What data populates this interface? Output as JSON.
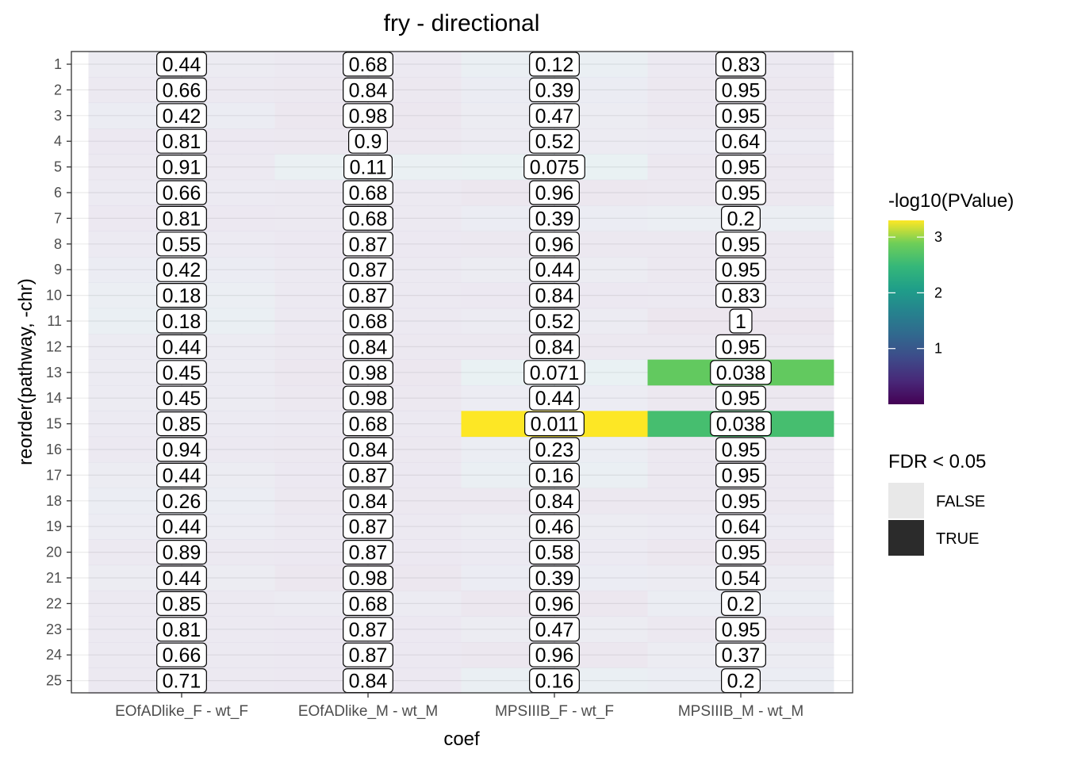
{
  "chart_data": {
    "type": "heatmap",
    "title": "fry - directional",
    "xlabel": "coef",
    "ylabel": "reorder(pathway, -chr)",
    "x_categories": [
      "EOfADlike_F - wt_F",
      "EOfADlike_M - wt_M",
      "MPSIIIB_F - wt_F",
      "MPSIIIB_M - wt_M"
    ],
    "y_categories": [
      "1",
      "2",
      "3",
      "4",
      "5",
      "6",
      "7",
      "8",
      "9",
      "10",
      "11",
      "12",
      "13",
      "14",
      "15",
      "16",
      "17",
      "18",
      "19",
      "20",
      "21",
      "22",
      "23",
      "24",
      "25"
    ],
    "fdr_labels": [
      [
        "0.44",
        "0.66",
        "0.42",
        "0.81",
        "0.91",
        "0.66",
        "0.81",
        "0.55",
        "0.42",
        "0.18",
        "0.18",
        "0.44",
        "0.45",
        "0.45",
        "0.85",
        "0.94",
        "0.44",
        "0.26",
        "0.44",
        "0.89",
        "0.44",
        "0.85",
        "0.81",
        "0.66",
        "0.71"
      ],
      [
        "0.68",
        "0.84",
        "0.98",
        "0.9",
        "0.11",
        "0.68",
        "0.68",
        "0.87",
        "0.87",
        "0.87",
        "0.68",
        "0.84",
        "0.98",
        "0.98",
        "0.68",
        "0.84",
        "0.87",
        "0.84",
        "0.87",
        "0.87",
        "0.98",
        "0.68",
        "0.87",
        "0.87",
        "0.84"
      ],
      [
        "0.12",
        "0.39",
        "0.47",
        "0.52",
        "0.075",
        "0.96",
        "0.39",
        "0.96",
        "0.44",
        "0.84",
        "0.52",
        "0.84",
        "0.071",
        "0.44",
        "0.011",
        "0.23",
        "0.16",
        "0.84",
        "0.46",
        "0.58",
        "0.39",
        "0.96",
        "0.47",
        "0.96",
        "0.16"
      ],
      [
        "0.83",
        "0.95",
        "0.95",
        "0.64",
        "0.95",
        "0.95",
        "0.2",
        "0.95",
        "0.95",
        "0.83",
        "1",
        "0.95",
        "0.038",
        "0.95",
        "0.038",
        "0.95",
        "0.95",
        "0.95",
        "0.64",
        "0.95",
        "0.54",
        "0.2",
        "0.95",
        "0.37",
        "0.2"
      ]
    ],
    "neglog10_pvalue": [
      [
        0.6,
        0.4,
        0.8,
        0.35,
        0.45,
        0.5,
        0.35,
        0.55,
        0.8,
        1.0,
        1.1,
        0.6,
        0.6,
        0.6,
        0.5,
        0.45,
        0.7,
        0.9,
        0.75,
        0.4,
        0.7,
        0.45,
        0.4,
        0.45,
        0.45
      ],
      [
        0.4,
        0.3,
        0.2,
        0.25,
        1.3,
        0.4,
        0.45,
        0.35,
        0.4,
        0.4,
        0.45,
        0.3,
        0.2,
        0.25,
        0.45,
        0.3,
        0.35,
        0.3,
        0.4,
        0.35,
        0.2,
        0.6,
        0.35,
        0.35,
        0.35
      ],
      [
        1.2,
        0.8,
        0.7,
        0.6,
        1.45,
        0.2,
        0.8,
        0.25,
        0.7,
        0.35,
        0.6,
        0.3,
        1.5,
        0.75,
        3.3,
        0.95,
        1.1,
        0.3,
        0.7,
        0.5,
        0.8,
        0.2,
        0.7,
        0.15,
        1.1
      ],
      [
        0.4,
        0.25,
        0.25,
        0.5,
        0.3,
        0.25,
        1.0,
        0.3,
        0.3,
        0.4,
        0.1,
        0.3,
        2.8,
        0.3,
        2.6,
        0.25,
        0.3,
        0.3,
        0.5,
        0.2,
        0.6,
        0.95,
        0.3,
        0.7,
        0.85
      ]
    ],
    "fdr_significant": [
      [
        false,
        false,
        false,
        false,
        false,
        false,
        false,
        false,
        false,
        false,
        false,
        false,
        false,
        false,
        false,
        false,
        false,
        false,
        false,
        false,
        false,
        false,
        false,
        false,
        false
      ],
      [
        false,
        false,
        false,
        false,
        false,
        false,
        false,
        false,
        false,
        false,
        false,
        false,
        false,
        false,
        false,
        false,
        false,
        false,
        false,
        false,
        false,
        false,
        false,
        false,
        false
      ],
      [
        false,
        false,
        false,
        false,
        false,
        false,
        false,
        false,
        false,
        false,
        false,
        false,
        false,
        false,
        true,
        false,
        false,
        false,
        false,
        false,
        false,
        false,
        false,
        false,
        false
      ],
      [
        false,
        false,
        false,
        false,
        false,
        false,
        false,
        false,
        false,
        false,
        false,
        false,
        true,
        false,
        true,
        false,
        false,
        false,
        false,
        false,
        false,
        false,
        false,
        false,
        false
      ]
    ],
    "color_scale": {
      "title": "-log10(PValue)",
      "colormap": "viridis",
      "range": [
        0,
        3.3
      ],
      "ticks": [
        "1",
        "2",
        "3"
      ],
      "tick_values": [
        1,
        2,
        3
      ]
    },
    "fdr_legend": {
      "title": "FDR < 0.05",
      "entries": [
        {
          "label": "FALSE",
          "color": "#e8e8e8"
        },
        {
          "label": "TRUE",
          "color": "#2b2b2b"
        }
      ]
    },
    "grid": true,
    "legend_position": "right"
  }
}
